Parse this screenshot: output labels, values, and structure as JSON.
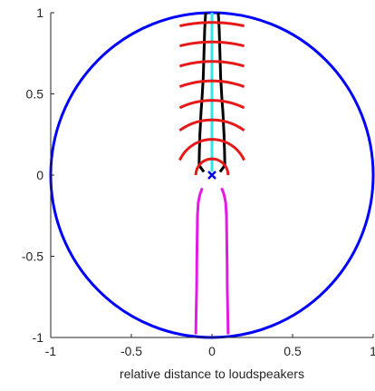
{
  "chart_data": {
    "type": "line",
    "title": "",
    "xlabel": "relative distance to loudspeakers",
    "ylabel": "",
    "xlim": [
      -1,
      1
    ],
    "ylim": [
      -1,
      1
    ],
    "xticks": [
      -1,
      -0.5,
      0,
      0.5,
      1
    ],
    "yticks": [
      -1,
      -0.5,
      0,
      0.5,
      1
    ],
    "xtick_labels": [
      "-1",
      "-0.5",
      "0",
      "0.5",
      "1"
    ],
    "ytick_labels": [
      "-1",
      "-0.5",
      "0",
      "0.5",
      "1"
    ],
    "grid": false,
    "legend": "none",
    "colors": {
      "circle": "#0072BD",
      "black": "#000000",
      "cyan": "#33E5E5",
      "red": "#E51919",
      "magenta": "#E519E5",
      "marker": "#0000E5"
    },
    "series": [
      {
        "color": "blue",
        "shape": "unit-circle",
        "center": [
          0,
          0
        ],
        "radius": 1
      },
      {
        "color": "black",
        "shape": "envelope",
        "x": [
          -0.08,
          -0.079,
          -0.078,
          -0.076,
          -0.075,
          -0.072,
          -0.07,
          -0.067,
          -0.063,
          -0.06,
          -0.057,
          -0.054,
          -0.051,
          -0.048,
          -0.045,
          -0.042,
          -0.039
        ],
        "y": [
          0.06,
          0.1,
          0.15,
          0.2,
          0.25,
          0.3,
          0.35,
          0.4,
          0.45,
          0.5,
          0.55,
          0.6,
          0.7,
          0.8,
          0.9,
          0.95,
          1.0
        ],
        "mirror_x": true,
        "closing_segment": {
          "x": [
            -0.08,
            -0.05
          ],
          "y": [
            0.06,
            0.02
          ]
        }
      },
      {
        "color": "cyan",
        "shape": "line",
        "x": [
          0,
          0
        ],
        "y": [
          0.02,
          1.0
        ]
      },
      {
        "color": "red",
        "shape": "wavefronts",
        "center": [
          0,
          0
        ],
        "radii": [
          0.1,
          0.22,
          0.34,
          0.46,
          0.58,
          0.7,
          0.82,
          0.94
        ],
        "half_width": 0.2,
        "first_half_width": 0.12
      },
      {
        "color": "magenta",
        "shape": "envelope",
        "x": [
          -0.06,
          -0.075,
          -0.085,
          -0.09,
          -0.092,
          -0.094,
          -0.095,
          -0.097,
          -0.099,
          -0.1
        ],
        "y": [
          -0.08,
          -0.12,
          -0.17,
          -0.25,
          -0.4,
          -0.55,
          -0.7,
          -0.8,
          -0.9,
          -0.98
        ],
        "mirror_x": true
      },
      {
        "color": "marker",
        "shape": "marker-x",
        "x": [
          0
        ],
        "y": [
          0
        ]
      }
    ]
  }
}
